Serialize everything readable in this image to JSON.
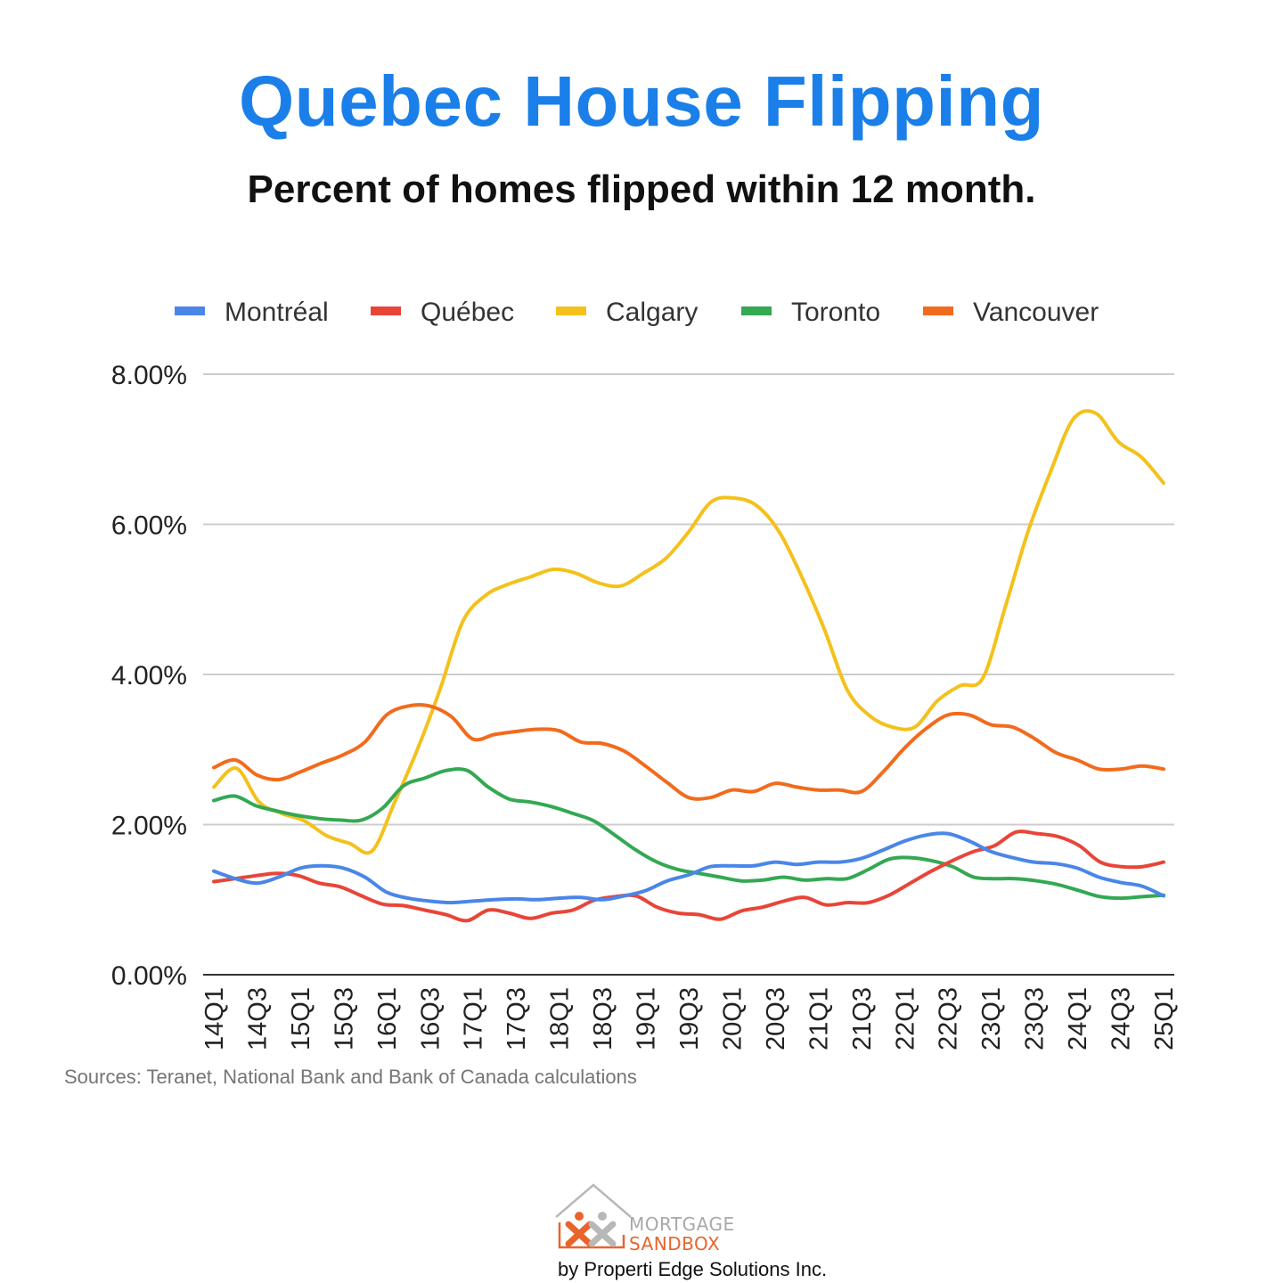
{
  "header": {
    "title": "Quebec House Flipping",
    "subtitle": "Percent of homes flipped within 12 month."
  },
  "footer": {
    "source": "Sources: Teranet, National Bank and Bank of Canada calculations",
    "logo_line1": "MORTGAGE",
    "logo_line2": "SANDBOX",
    "byline": "by Properti Edge Solutions Inc."
  },
  "chart_data": {
    "type": "line",
    "ylim": [
      0,
      8
    ],
    "yticks": [
      "0.00%",
      "2.00%",
      "4.00%",
      "6.00%",
      "8.00%"
    ],
    "ytick_values": [
      0,
      2,
      4,
      6,
      8
    ],
    "xticks": [
      "14Q1",
      "14Q3",
      "15Q1",
      "15Q3",
      "16Q1",
      "16Q3",
      "17Q1",
      "17Q3",
      "18Q1",
      "18Q3",
      "19Q1",
      "19Q3",
      "20Q1",
      "20Q3",
      "21Q1",
      "21Q3",
      "22Q1",
      "22Q3",
      "23Q1",
      "23Q3",
      "24Q1",
      "24Q3",
      "25Q1"
    ],
    "grid": true,
    "legend_position": "top",
    "series": [
      {
        "name": "Montréal",
        "color": "#4a86e8",
        "values": [
          1.38,
          1.28,
          1.22,
          1.3,
          1.42,
          1.45,
          1.42,
          1.3,
          1.1,
          1.02,
          0.98,
          0.96,
          0.98,
          1.0,
          1.01,
          1.0,
          1.02,
          1.03,
          1.0,
          1.05,
          1.12,
          1.25,
          1.33,
          1.44,
          1.45,
          1.45,
          1.5,
          1.47,
          1.5,
          1.5,
          1.55,
          1.66,
          1.78,
          1.86,
          1.88,
          1.78,
          1.64,
          1.56,
          1.5,
          1.48,
          1.42,
          1.3,
          1.23,
          1.18,
          1.05
        ]
      },
      {
        "name": "Québec",
        "color": "#e84538",
        "values": [
          1.24,
          1.28,
          1.32,
          1.35,
          1.32,
          1.22,
          1.17,
          1.05,
          0.94,
          0.92,
          0.86,
          0.8,
          0.72,
          0.86,
          0.82,
          0.75,
          0.82,
          0.86,
          0.99,
          1.04,
          1.05,
          0.9,
          0.82,
          0.8,
          0.74,
          0.85,
          0.9,
          0.98,
          1.03,
          0.93,
          0.96,
          0.96,
          1.06,
          1.22,
          1.38,
          1.52,
          1.64,
          1.72,
          1.9,
          1.88,
          1.84,
          1.72,
          1.5,
          1.44,
          1.44,
          1.5
        ]
      },
      {
        "name": "Calgary",
        "color": "#f4c11c",
        "values": [
          2.5,
          2.75,
          2.3,
          2.15,
          2.05,
          1.85,
          1.75,
          1.65,
          2.3,
          3.0,
          3.8,
          4.7,
          5.05,
          5.2,
          5.3,
          5.4,
          5.35,
          5.22,
          5.18,
          5.35,
          5.55,
          5.9,
          6.3,
          6.35,
          6.25,
          5.9,
          5.3,
          4.6,
          3.8,
          3.45,
          3.3,
          3.3,
          3.65,
          3.85,
          3.95,
          4.9,
          5.9,
          6.7,
          7.4,
          7.48,
          7.1,
          6.9,
          6.55
        ]
      },
      {
        "name": "Toronto",
        "color": "#34a853",
        "values": [
          2.32,
          2.38,
          2.25,
          2.18,
          2.12,
          2.08,
          2.06,
          2.06,
          2.22,
          2.52,
          2.62,
          2.72,
          2.72,
          2.5,
          2.34,
          2.3,
          2.24,
          2.15,
          2.05,
          1.86,
          1.66,
          1.5,
          1.4,
          1.35,
          1.3,
          1.25,
          1.26,
          1.3,
          1.26,
          1.28,
          1.28,
          1.4,
          1.54,
          1.56,
          1.52,
          1.44,
          1.3,
          1.28,
          1.28,
          1.25,
          1.2,
          1.12,
          1.04,
          1.02,
          1.04,
          1.06
        ]
      },
      {
        "name": "Vancouver",
        "color": "#f26b1c",
        "values": [
          2.76,
          2.86,
          2.66,
          2.6,
          2.7,
          2.82,
          2.93,
          3.1,
          3.46,
          3.58,
          3.58,
          3.44,
          3.14,
          3.2,
          3.24,
          3.27,
          3.25,
          3.1,
          3.08,
          2.98,
          2.78,
          2.56,
          2.36,
          2.36,
          2.46,
          2.44,
          2.55,
          2.5,
          2.46,
          2.46,
          2.44,
          2.7,
          3.02,
          3.28,
          3.46,
          3.46,
          3.33,
          3.3,
          3.15,
          2.96,
          2.86,
          2.74,
          2.74,
          2.78,
          2.74
        ]
      }
    ]
  }
}
